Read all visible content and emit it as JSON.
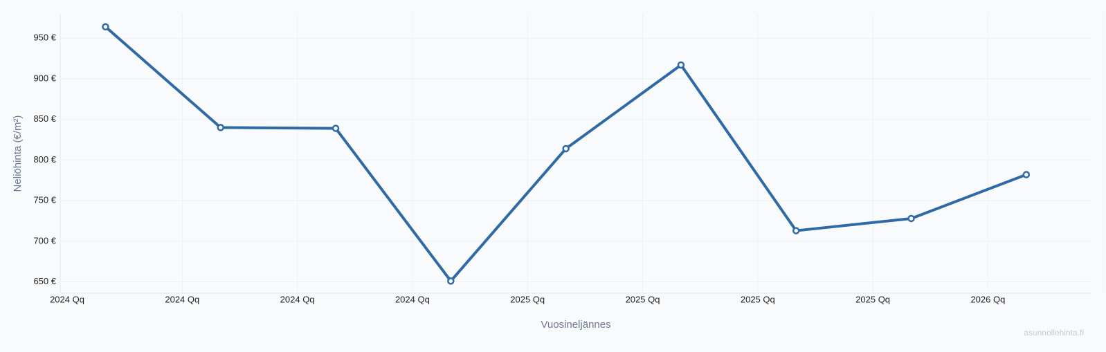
{
  "chart_data": {
    "type": "line",
    "y_label": "Neliöhinta (€/m²)",
    "x_label": "Vuosineljännes",
    "watermark": "asunnollehinta.fi",
    "categories": [
      "2024 Qq",
      "2024 Qq",
      "2024 Qq",
      "2024 Qq",
      "2025 Qq",
      "2025 Qq",
      "2025 Qq",
      "2025 Qq",
      "2026 Qq"
    ],
    "series": [
      {
        "color": "#2f6aa5",
        "values": [
          964,
          840,
          839,
          651,
          814,
          917,
          713,
          728,
          782
        ]
      }
    ],
    "ylim": [
      636,
      980
    ],
    "yticks": [
      {
        "value": 650,
        "label": "650 €"
      },
      {
        "value": 700,
        "label": "700 €"
      },
      {
        "value": 750,
        "label": "750 €"
      },
      {
        "value": 800,
        "label": "800 €"
      },
      {
        "value": 850,
        "label": "850 €"
      },
      {
        "value": 900,
        "label": "900 €"
      },
      {
        "value": 950,
        "label": "950 €"
      }
    ],
    "grid": true
  }
}
